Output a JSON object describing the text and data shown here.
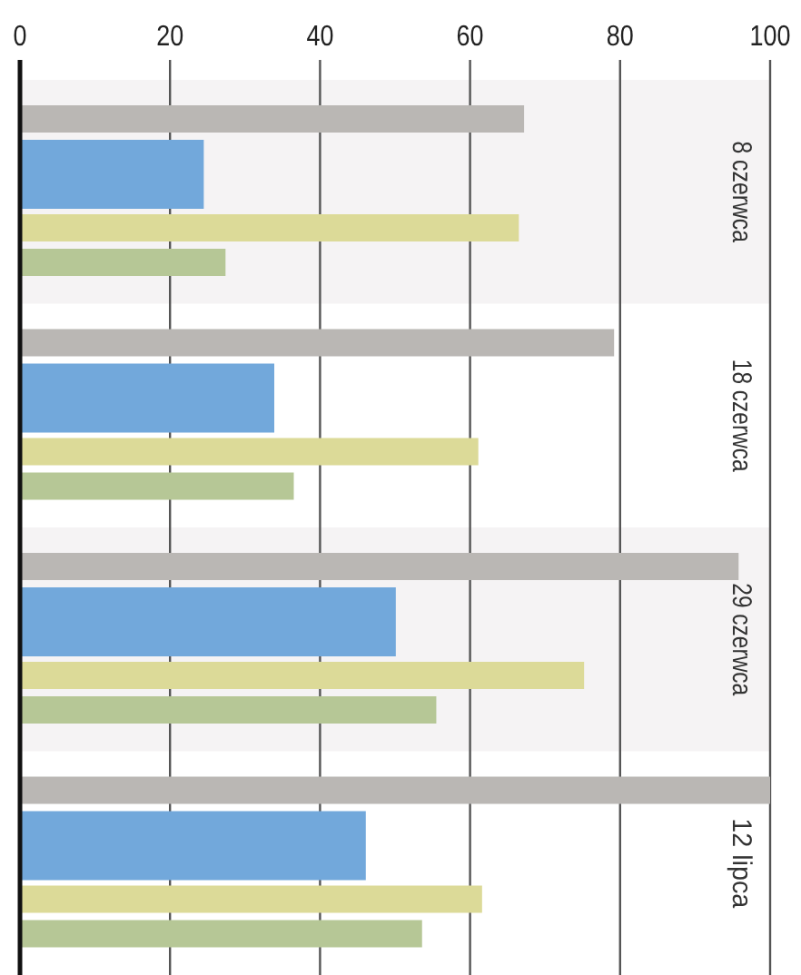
{
  "chart_data": {
    "type": "bar",
    "orientation": "horizontal",
    "categories": [
      "8 czerwca",
      "18 czerwca",
      "29 czerwca",
      "12 lipca"
    ],
    "series": [
      {
        "color": "#bab7b4",
        "values": [
          67.2,
          79.2,
          95.8,
          100
        ]
      },
      {
        "color": "#72a8db",
        "values": [
          24.5,
          33.9,
          50.1,
          46.1
        ]
      },
      {
        "color": "#dcda98",
        "values": [
          66.5,
          61.1,
          75.2,
          61.6
        ]
      },
      {
        "color": "#b6c796",
        "values": [
          27.4,
          36.5,
          55.5,
          53.6
        ]
      }
    ],
    "xlim": [
      0,
      100
    ],
    "xticks": [
      0,
      20,
      40,
      60,
      80,
      100
    ],
    "grid": "x",
    "bands": [
      {
        "axis": "y",
        "from": "8 czerwca",
        "to": "8 czerwca",
        "color": "#f5f3f4"
      },
      {
        "axis": "y",
        "from": "29 czerwca",
        "to": "29 czerwca",
        "color": "#f5f3f4"
      }
    ]
  }
}
